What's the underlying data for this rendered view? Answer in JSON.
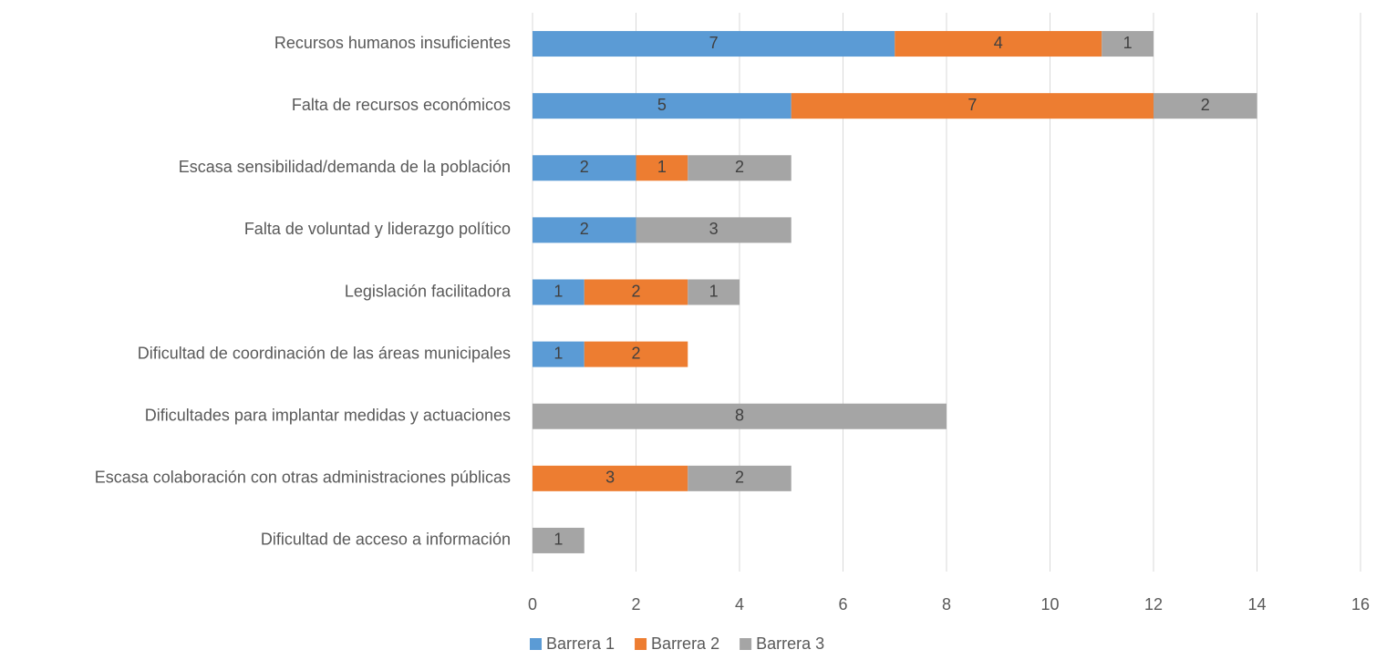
{
  "chart_data": {
    "type": "stacked_barh",
    "categories": [
      "Recursos humanos insuficientes",
      "Falta de recursos económicos",
      "Escasa sensibilidad/demanda de la población",
      "Falta de voluntad y liderazgo político",
      "Legislación facilitadora",
      "Dificultad de coordinación de las áreas municipales",
      "Dificultades para implantar medidas y actuaciones",
      "Escasa colaboración con otras administraciones públicas",
      "Dificultad de acceso a información"
    ],
    "series": [
      {
        "name": "Barrera 1",
        "color": "#5b9bd5",
        "values": [
          7,
          5,
          2,
          2,
          1,
          1,
          null,
          null,
          null
        ]
      },
      {
        "name": "Barrera 2",
        "color": "#ed7d31",
        "values": [
          4,
          7,
          1,
          null,
          2,
          2,
          null,
          3,
          null
        ]
      },
      {
        "name": "Barrera 3",
        "color": "#a5a5a5",
        "values": [
          1,
          2,
          2,
          3,
          1,
          null,
          8,
          2,
          1
        ]
      }
    ],
    "xlim": [
      0,
      16
    ],
    "xticks": [
      0,
      2,
      4,
      6,
      8,
      10,
      12,
      14,
      16
    ],
    "grid": true,
    "legend": "bottom"
  }
}
